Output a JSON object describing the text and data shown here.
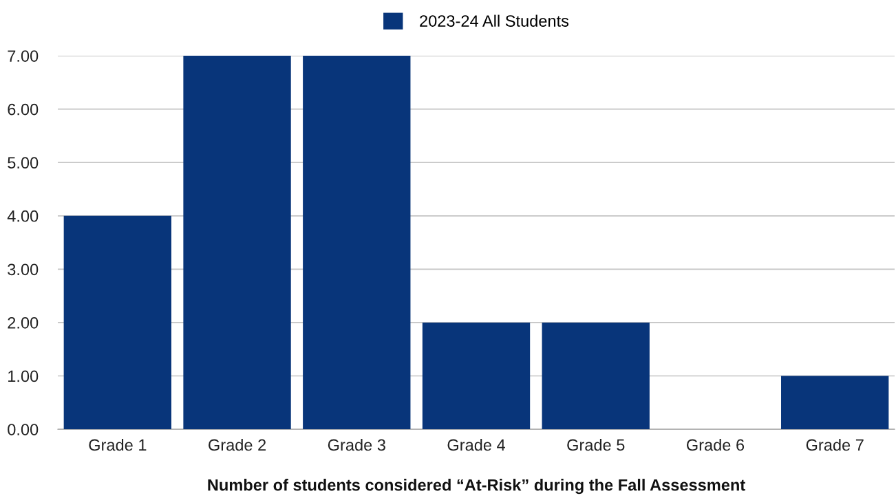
{
  "chart_data": {
    "type": "bar",
    "xlabel": "Number of students considered “At-Risk” during the Fall Assessment",
    "categories": [
      "Grade 1",
      "Grade 2",
      "Grade 3",
      "Grade 4",
      "Grade 5",
      "Grade 6",
      "Grade 7"
    ],
    "series": [
      {
        "name": "2023-24 All Students",
        "color": "#08357a",
        "values": [
          4,
          7,
          7,
          2,
          2,
          0,
          1
        ]
      }
    ],
    "ylim": [
      0,
      7
    ],
    "yticks": [
      {
        "value": 0,
        "label": "0.00"
      },
      {
        "value": 1,
        "label": "1.00"
      },
      {
        "value": 2,
        "label": "2.00"
      },
      {
        "value": 3,
        "label": "3.00"
      },
      {
        "value": 4,
        "label": "4.00"
      },
      {
        "value": 5,
        "label": "5.00"
      },
      {
        "value": 6,
        "label": "6.00"
      },
      {
        "value": 7,
        "label": "7.00"
      }
    ],
    "grid": "y",
    "legend": "top"
  }
}
